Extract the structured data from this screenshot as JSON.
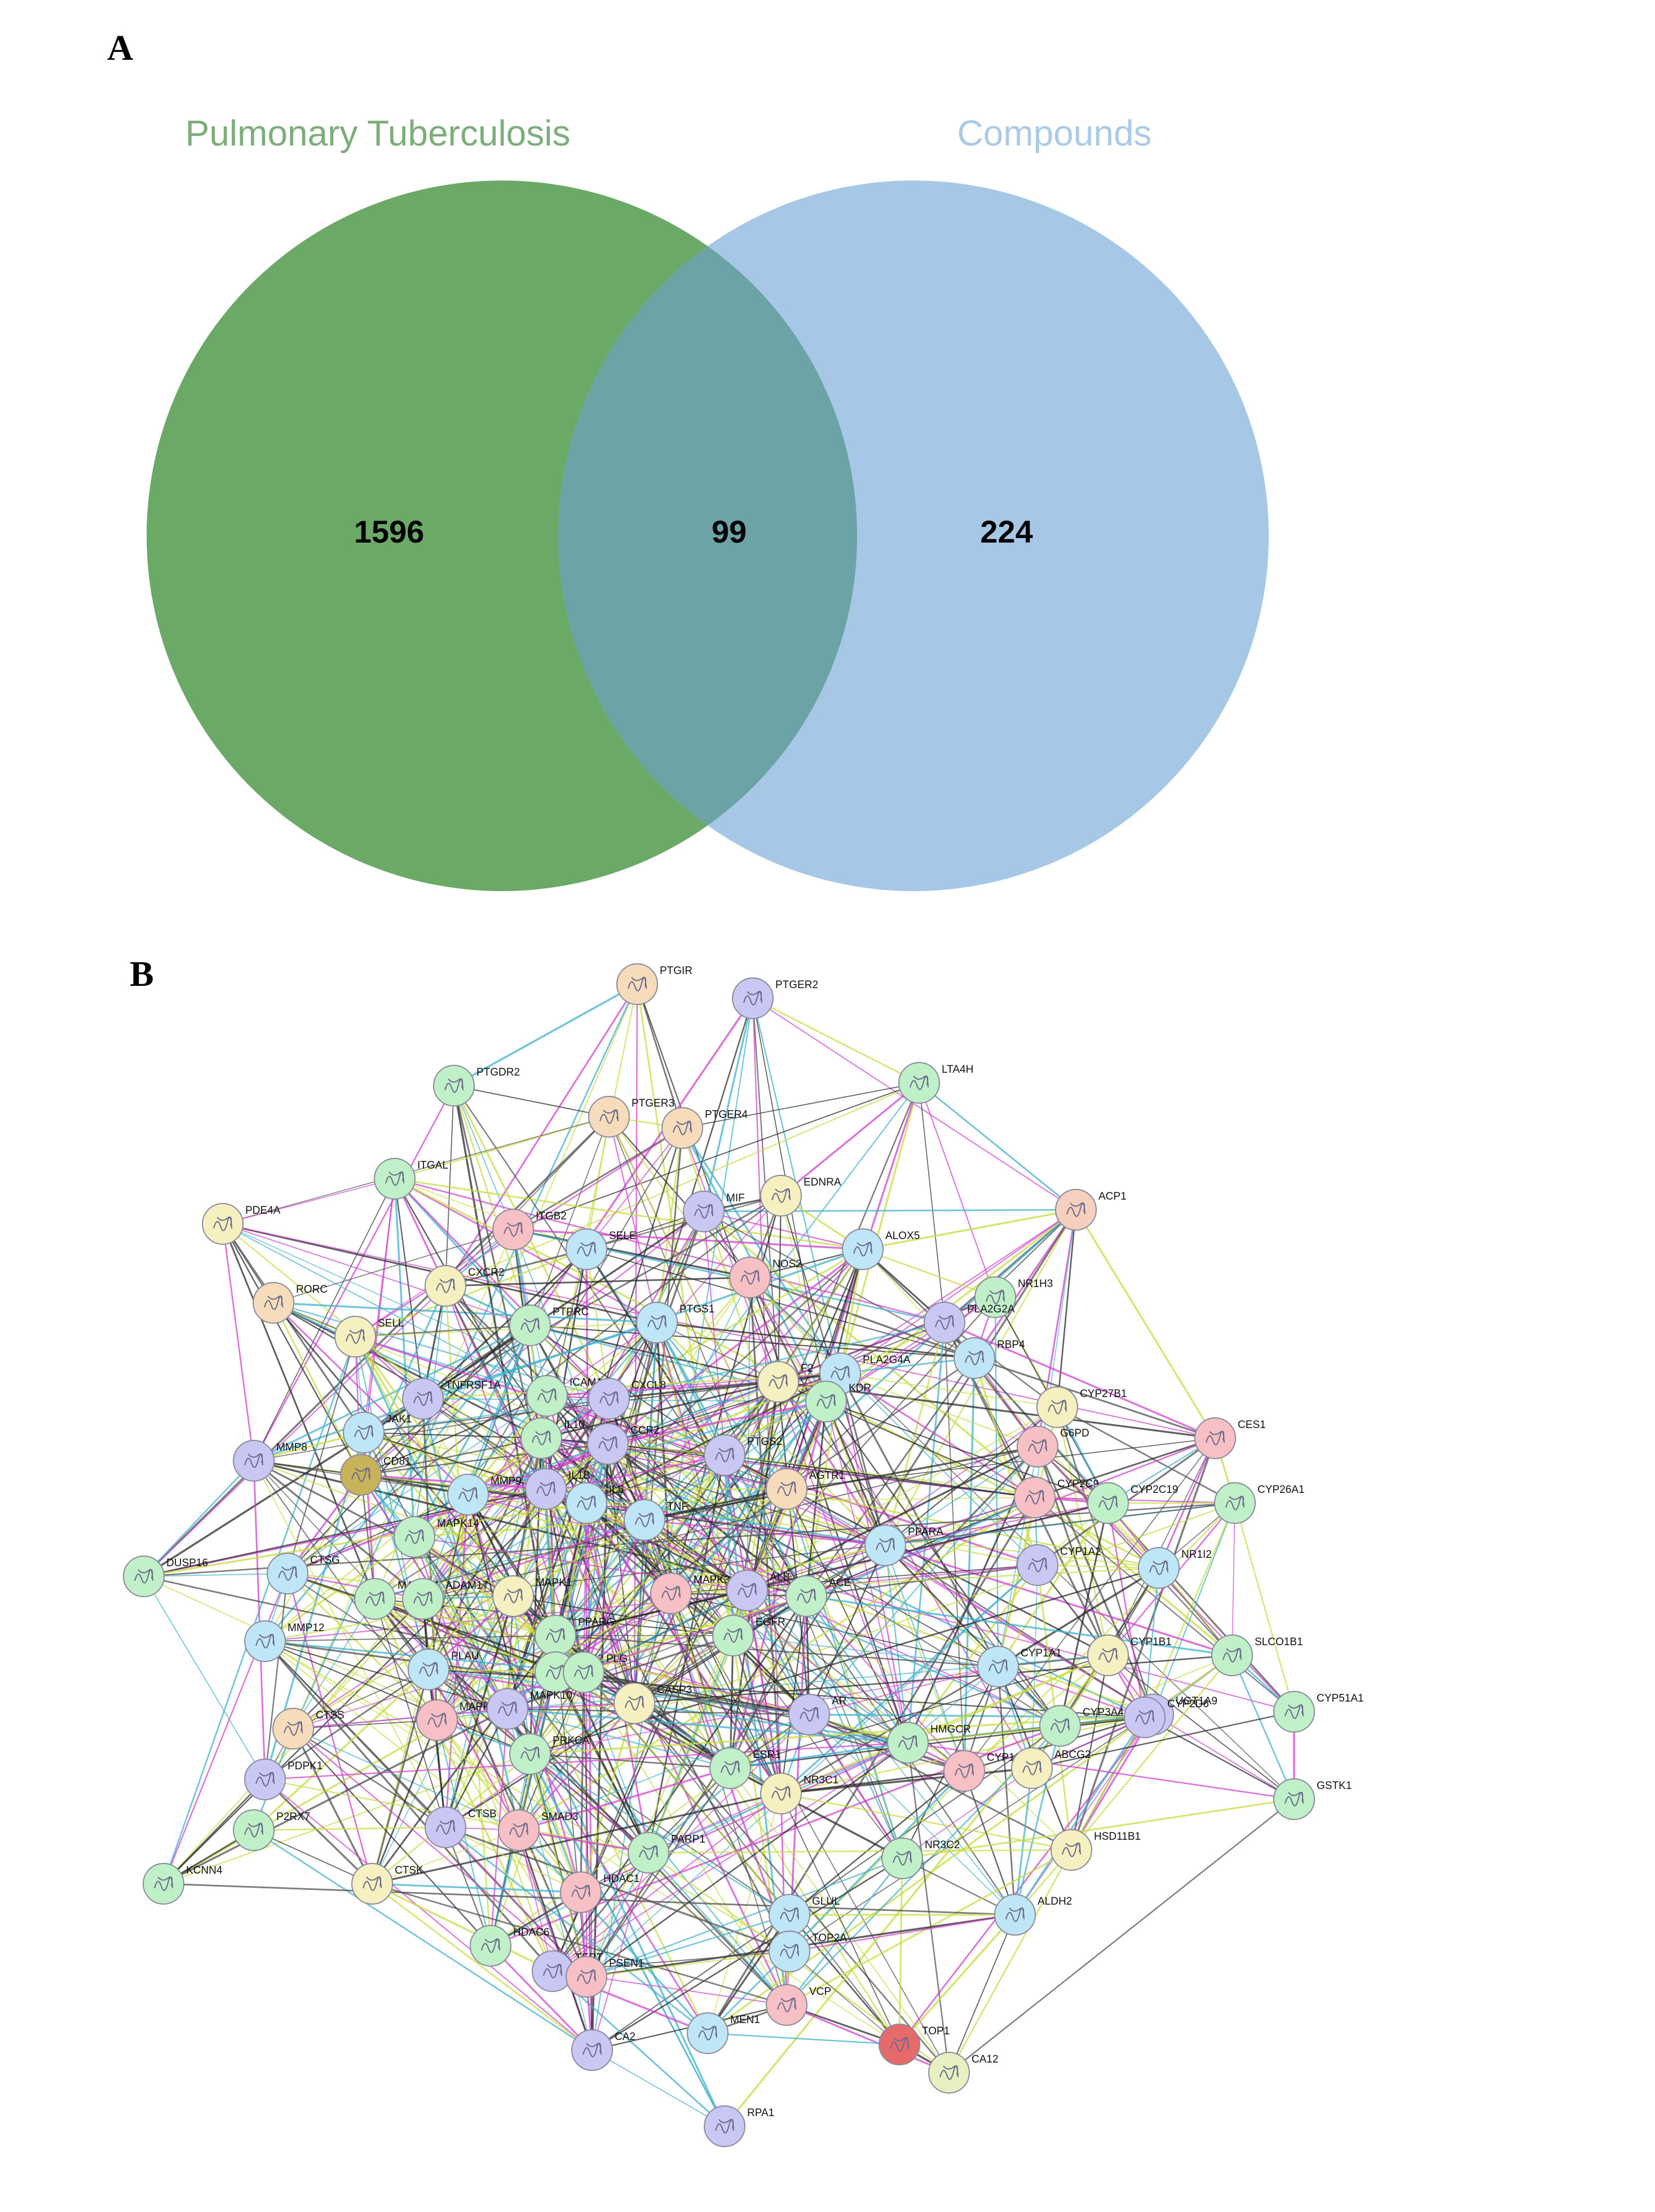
{
  "panel_labels": {
    "a": "A",
    "b": "B"
  },
  "venn": {
    "sets": [
      {
        "name": "Pulmonary Tuberculosis",
        "count": "1596",
        "color": "#6aa966",
        "title_color": "#7dae7a"
      },
      {
        "name": "Compounds",
        "count": "224",
        "color": "#a6c8e6",
        "title_color": "#a9cbe8"
      }
    ],
    "intersection_count": "99",
    "intersection_color": "#6ba3a6"
  },
  "network": {
    "node_color_palette": [
      "#c7d8f4",
      "#b9f0c4",
      "#f7dcbc",
      "#f6f0c0",
      "#f7c0c4",
      "#bfc0f2",
      "#bfe6f7",
      "#c7f2d4",
      "#f2c2c8",
      "#e66a6a",
      "#c8b25a"
    ],
    "edge_colors": [
      "#2a2a2a",
      "#c8dc40",
      "#d040d0",
      "#40b0d0",
      "#505050"
    ],
    "nodes": [
      {
        "label": "PTGIR",
        "color": "#f7dcbc"
      },
      {
        "label": "PTGER2",
        "color": "#c9c8f4"
      },
      {
        "label": "PTGDR2",
        "color": "#bff0c8"
      },
      {
        "label": "LTA4H",
        "color": "#bff0c8"
      },
      {
        "label": "PTGER3",
        "color": "#f7dcbc"
      },
      {
        "label": "PTGER4",
        "color": "#f7dcbc"
      },
      {
        "label": "ITGAL",
        "color": "#bff0c8"
      },
      {
        "label": "MIF",
        "color": "#c9c8f4"
      },
      {
        "label": "EDNRA",
        "color": "#f6f0c0"
      },
      {
        "label": "ACP1",
        "color": "#f7cfbf"
      },
      {
        "label": "PDE4A",
        "color": "#f6f0c0"
      },
      {
        "label": "ITGB2",
        "color": "#f7c0c4"
      },
      {
        "label": "SELE",
        "color": "#bfe6f7"
      },
      {
        "label": "NOS2",
        "color": "#f7c0c4"
      },
      {
        "label": "ALOX5",
        "color": "#bfe6f7"
      },
      {
        "label": "NR1H3",
        "color": "#bff0c8"
      },
      {
        "label": "RORC",
        "color": "#f7dcbc"
      },
      {
        "label": "CXCR2",
        "color": "#f6f0c0"
      },
      {
        "label": "PTPRC",
        "color": "#bff0c8"
      },
      {
        "label": "PTGS1",
        "color": "#bfe6f7"
      },
      {
        "label": "PLA2G2A",
        "color": "#c9c8f4"
      },
      {
        "label": "RBP4",
        "color": "#bfe6f7"
      },
      {
        "label": "SELL",
        "color": "#f6f0c0"
      },
      {
        "label": "TNFRSF1A",
        "color": "#c9c8f4"
      },
      {
        "label": "ICAM1",
        "color": "#bff0c8"
      },
      {
        "label": "CXCL8",
        "color": "#c9c8f4"
      },
      {
        "label": "F2",
        "color": "#f6f0c0"
      },
      {
        "label": "PLA2G4A",
        "color": "#bfe6f7"
      },
      {
        "label": "KDR",
        "color": "#bff0c8"
      },
      {
        "label": "CYP27B1",
        "color": "#f6f0c0"
      },
      {
        "label": "CES1",
        "color": "#f7c0c4"
      },
      {
        "label": "JAK1",
        "color": "#bfe6f7"
      },
      {
        "label": "IL10",
        "color": "#bff0c8"
      },
      {
        "label": "CCR2",
        "color": "#c9c8f4"
      },
      {
        "label": "PTGS2",
        "color": "#c9c8f4"
      },
      {
        "label": "MMP8",
        "color": "#c9c8f4"
      },
      {
        "label": "CD81",
        "color": "#c8b25a"
      },
      {
        "label": "MMP9",
        "color": "#bfe6f7"
      },
      {
        "label": "IL1B",
        "color": "#c9c8f4"
      },
      {
        "label": "IL6",
        "color": "#bfe6f7"
      },
      {
        "label": "AGTR1",
        "color": "#f7dcbc"
      },
      {
        "label": "G6PD",
        "color": "#f7c0c4"
      },
      {
        "label": "CYP2C9",
        "color": "#f7c0c4"
      },
      {
        "label": "CYP2C19",
        "color": "#bff0c8"
      },
      {
        "label": "CYP26A1",
        "color": "#bff0c8"
      },
      {
        "label": "TNF",
        "color": "#bfe6f7"
      },
      {
        "label": "MAPK14",
        "color": "#bff0c8"
      },
      {
        "label": "PPARA",
        "color": "#bfe6f7"
      },
      {
        "label": "CYP1A2",
        "color": "#c9c8f4"
      },
      {
        "label": "NR1I2",
        "color": "#bfe6f7"
      },
      {
        "label": "DUSP16",
        "color": "#bff0c8"
      },
      {
        "label": "CTSG",
        "color": "#bfe6f7"
      },
      {
        "label": "MAP2K1",
        "color": "#bff0c8"
      },
      {
        "label": "ADAM17",
        "color": "#bff0c8"
      },
      {
        "label": "MAPK1",
        "color": "#f6f0c0"
      },
      {
        "label": "MAPK3",
        "color": "#f7c0c4"
      },
      {
        "label": "ALB",
        "color": "#c9c8f4"
      },
      {
        "label": "ACE",
        "color": "#bff0c8"
      },
      {
        "label": "MMP12",
        "color": "#bfe6f7"
      },
      {
        "label": "PPARG",
        "color": "#bff0c8"
      },
      {
        "label": "PLAU",
        "color": "#bfe6f7"
      },
      {
        "label": "JAK2",
        "color": "#bff0c8"
      },
      {
        "label": "PLG",
        "color": "#bff0c8"
      },
      {
        "label": "CASP3",
        "color": "#f6f0c0"
      },
      {
        "label": "EGFR",
        "color": "#bff0c8"
      },
      {
        "label": "AR",
        "color": "#c9c8f4"
      },
      {
        "label": "CYP1A1",
        "color": "#bfe6f7"
      },
      {
        "label": "CYP1B1",
        "color": "#f6f0c0"
      },
      {
        "label": "SLCO1B1",
        "color": "#bff0c8"
      },
      {
        "label": "UGT1A9",
        "color": "#c9c8f4"
      },
      {
        "label": "CYP3A4",
        "color": "#bff0c8"
      },
      {
        "label": "CYP2D6",
        "color": "#c9c8f4"
      },
      {
        "label": "CYP51A1",
        "color": "#bff0c8"
      },
      {
        "label": "CTSS",
        "color": "#f7dcbc"
      },
      {
        "label": "MAPK8",
        "color": "#f7c0c4"
      },
      {
        "label": "MAPK10",
        "color": "#c9c8f4"
      },
      {
        "label": "PRKCA",
        "color": "#bff0c8"
      },
      {
        "label": "HMGCR",
        "color": "#bff0c8"
      },
      {
        "label": "ESR1",
        "color": "#bff0c8"
      },
      {
        "label": "PDPK1",
        "color": "#c9c8f4"
      },
      {
        "label": "P2RX7",
        "color": "#bff0c8"
      },
      {
        "label": "NR3C1",
        "color": "#f6f0c0"
      },
      {
        "label": "CYP19A1",
        "color": "#f7c0c4"
      },
      {
        "label": "ABCG2",
        "color": "#f6f0c0"
      },
      {
        "label": "GSTK1",
        "color": "#bff0c8"
      },
      {
        "label": "CTSB",
        "color": "#c9c8f4"
      },
      {
        "label": "SMAD3",
        "color": "#f7c0c4"
      },
      {
        "label": "PARP1",
        "color": "#bff0c8"
      },
      {
        "label": "NR3C2",
        "color": "#bff0c8"
      },
      {
        "label": "HSD11B1",
        "color": "#f6f0c0"
      },
      {
        "label": "KCNN4",
        "color": "#bff0c8"
      },
      {
        "label": "CTSK",
        "color": "#f6f0c0"
      },
      {
        "label": "HDAC1",
        "color": "#f7c0c4"
      },
      {
        "label": "GLUL",
        "color": "#bfe6f7"
      },
      {
        "label": "ALDH2",
        "color": "#bfe6f7"
      },
      {
        "label": "HDAC6",
        "color": "#bff0c8"
      },
      {
        "label": "TERT",
        "color": "#c9c8f4"
      },
      {
        "label": "PSEN1",
        "color": "#f7c0c4"
      },
      {
        "label": "TOP2A",
        "color": "#bfe6f7"
      },
      {
        "label": "VCP",
        "color": "#f7c0c4"
      },
      {
        "label": "CA2",
        "color": "#c9c8f4"
      },
      {
        "label": "MEN1",
        "color": "#bfe6f7"
      },
      {
        "label": "TOP1",
        "color": "#e66a6a"
      },
      {
        "label": "CA12",
        "color": "#e6f0c0"
      },
      {
        "label": "RPA1",
        "color": "#c9c8f4"
      }
    ]
  }
}
